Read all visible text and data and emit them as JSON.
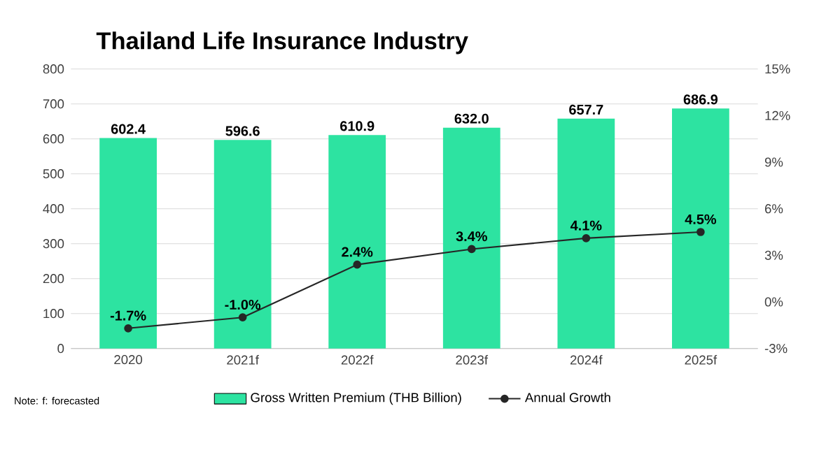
{
  "chart_data": {
    "type": "bar",
    "title": "Thailand Life Insurance Industry",
    "categories": [
      "2020",
      "2021f",
      "2022f",
      "2023f",
      "2024f",
      "2025f"
    ],
    "series": [
      {
        "name": "Gross Written Premium (THB Billion)",
        "color": "#2de3a1",
        "values": [
          602.4,
          596.6,
          610.9,
          632.0,
          657.7,
          686.9
        ],
        "value_labels": [
          "602.4",
          "596.6",
          "610.9",
          "632.0",
          "657.7",
          "686.9"
        ]
      },
      {
        "name": "Annual Growth",
        "type": "line",
        "axis": "y2",
        "color": "#262626",
        "values": [
          -1.7,
          -1.0,
          2.4,
          3.4,
          4.1,
          4.5
        ],
        "value_labels": [
          "-1.7%",
          "-1.0%",
          "2.4%",
          "3.4%",
          "4.1%",
          "4.5%"
        ]
      }
    ],
    "ylim": [
      0,
      800
    ],
    "yticks": [
      0,
      100,
      200,
      300,
      400,
      500,
      600,
      700,
      800
    ],
    "y2lim": [
      -3,
      15
    ],
    "y2ticks": [
      {
        "value": -3,
        "label": "-3%"
      },
      {
        "value": 0,
        "label": "0%"
      },
      {
        "value": 3,
        "label": "3%"
      },
      {
        "value": 6,
        "label": "6%"
      },
      {
        "value": 9,
        "label": "9%"
      },
      {
        "value": 12,
        "label": "12%"
      },
      {
        "value": 15,
        "label": "15%"
      }
    ],
    "grid": "y",
    "legend": "bottom",
    "marker": "circle",
    "annotations": [
      "Note: f: forecasted"
    ]
  }
}
